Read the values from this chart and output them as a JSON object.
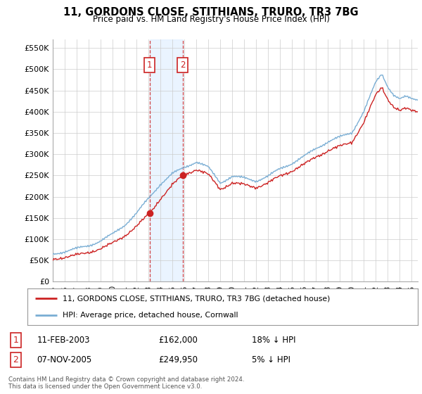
{
  "title": "11, GORDONS CLOSE, STITHIANS, TRURO, TR3 7BG",
  "subtitle": "Price paid vs. HM Land Registry's House Price Index (HPI)",
  "ylim": [
    0,
    570000
  ],
  "yticks": [
    0,
    50000,
    100000,
    150000,
    200000,
    250000,
    300000,
    350000,
    400000,
    450000,
    500000,
    550000
  ],
  "ytick_labels": [
    "£0",
    "£50K",
    "£100K",
    "£150K",
    "£200K",
    "£250K",
    "£300K",
    "£350K",
    "£400K",
    "£450K",
    "£500K",
    "£550K"
  ],
  "legend_line1": "11, GORDONS CLOSE, STITHIANS, TRURO, TR3 7BG (detached house)",
  "legend_line2": "HPI: Average price, detached house, Cornwall",
  "footnote": "Contains HM Land Registry data © Crown copyright and database right 2024.\nThis data is licensed under the Open Government Licence v3.0.",
  "transaction1_label": "1",
  "transaction1_date": "11-FEB-2003",
  "transaction1_price": "£162,000",
  "transaction1_hpi": "18% ↓ HPI",
  "transaction2_label": "2",
  "transaction2_date": "07-NOV-2005",
  "transaction2_price": "£249,950",
  "transaction2_hpi": "5% ↓ HPI",
  "sale1_year": 2003.1,
  "sale1_price": 162000,
  "sale2_year": 2005.85,
  "sale2_price": 249950,
  "hpi_color": "#7aaed4",
  "property_color": "#cc2222",
  "grid_color": "#cccccc",
  "background_color": "#ffffff",
  "highlight_color": "#ddeeff",
  "xlim_start": 1995,
  "xlim_end": 2025.5,
  "xtick_start": 1995,
  "xtick_end": 2026
}
